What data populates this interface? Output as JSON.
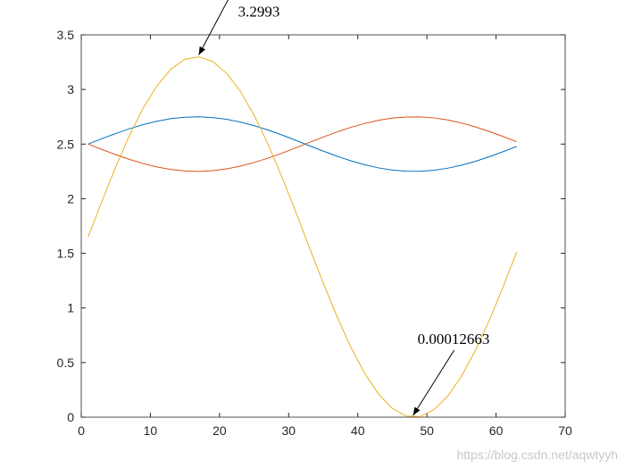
{
  "chart_data": {
    "type": "line",
    "x": [
      1,
      3,
      5,
      7,
      9,
      11,
      13,
      15,
      17,
      19,
      21,
      23,
      25,
      27,
      29,
      31,
      33,
      35,
      37,
      39,
      41,
      43,
      45,
      47,
      49,
      51,
      53,
      55,
      57,
      59,
      61,
      63
    ],
    "series": [
      {
        "color": "#0072BD",
        "values": [
          2.5,
          2.55,
          2.597,
          2.641,
          2.679,
          2.71,
          2.733,
          2.746,
          2.75,
          2.743,
          2.727,
          2.702,
          2.669,
          2.629,
          2.584,
          2.535,
          2.485,
          2.436,
          2.389,
          2.347,
          2.311,
          2.282,
          2.262,
          2.252,
          2.251,
          2.26,
          2.279,
          2.307,
          2.342,
          2.384,
          2.43,
          2.479
        ]
      },
      {
        "color": "#D95319",
        "values": [
          2.5,
          2.45,
          2.403,
          2.359,
          2.321,
          2.29,
          2.267,
          2.254,
          2.25,
          2.257,
          2.273,
          2.298,
          2.331,
          2.371,
          2.416,
          2.465,
          2.515,
          2.564,
          2.611,
          2.653,
          2.689,
          2.718,
          2.738,
          2.748,
          2.749,
          2.74,
          2.721,
          2.693,
          2.658,
          2.616,
          2.57,
          2.521
        ]
      },
      {
        "color": "#EDB120",
        "values": [
          1.65,
          1.978,
          2.293,
          2.582,
          2.834,
          3.038,
          3.188,
          3.276,
          3.299,
          3.257,
          3.15,
          2.984,
          2.765,
          2.501,
          2.203,
          1.883,
          1.554,
          1.228,
          0.92,
          0.64,
          0.401,
          0.212,
          0.08,
          0.01,
          0.006,
          0.068,
          0.192,
          0.375,
          0.608,
          0.883,
          1.189,
          1.513
        ]
      }
    ],
    "xlim": [
      0,
      70
    ],
    "xticks": [
      0,
      10,
      20,
      30,
      40,
      50,
      60,
      70
    ],
    "ylim": [
      0,
      3.5
    ],
    "yticks": [
      0,
      0.5,
      1,
      1.5,
      2,
      2.5,
      3,
      3.5
    ],
    "annotations": [
      {
        "text": "3.2993",
        "x": 17,
        "y": 3.2993
      },
      {
        "text": "0.00012663",
        "x": 48,
        "y": 0.00012663
      }
    ],
    "watermark": "https://blog.csdn.net/aqwtyyh"
  }
}
